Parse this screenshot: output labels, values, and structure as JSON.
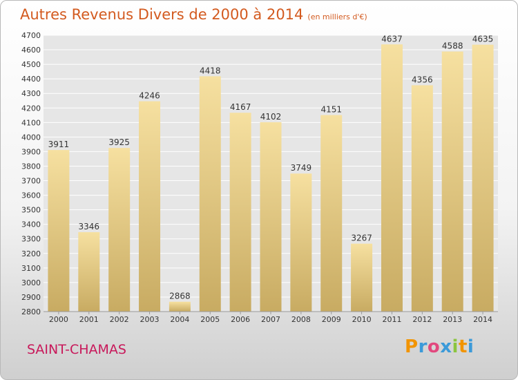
{
  "title": {
    "main": "Autres Revenus Divers de 2000 à 2014",
    "unit": "(en milliers d'€)"
  },
  "city": "SAINT-CHAMAS",
  "logo": {
    "text": "Proxiti",
    "letters": [
      "P",
      "r",
      "o",
      "x",
      "i",
      "t",
      "i"
    ]
  },
  "colors": {
    "bar_light": "#f6e0a0",
    "bar_dark": "#c8ab62",
    "title": "#d35a1f",
    "city": "#c8185a",
    "grid": "#ffffff"
  },
  "chart_data": {
    "type": "bar",
    "title": "Autres Revenus Divers de 2000 à 2014",
    "subtitle": "(en milliers d'€)",
    "xlabel": "",
    "ylabel": "",
    "categories": [
      "2000",
      "2001",
      "2002",
      "2003",
      "2004",
      "2005",
      "2006",
      "2007",
      "2008",
      "2009",
      "2010",
      "2011",
      "2012",
      "2013",
      "2014"
    ],
    "values": [
      3911,
      3346,
      3925,
      4246,
      2868,
      4418,
      4167,
      4102,
      3749,
      4151,
      3267,
      4637,
      4356,
      4588,
      4635
    ],
    "ylim": [
      2800,
      4700
    ],
    "ytick_step": 100,
    "grid": true,
    "data_labels": true
  }
}
